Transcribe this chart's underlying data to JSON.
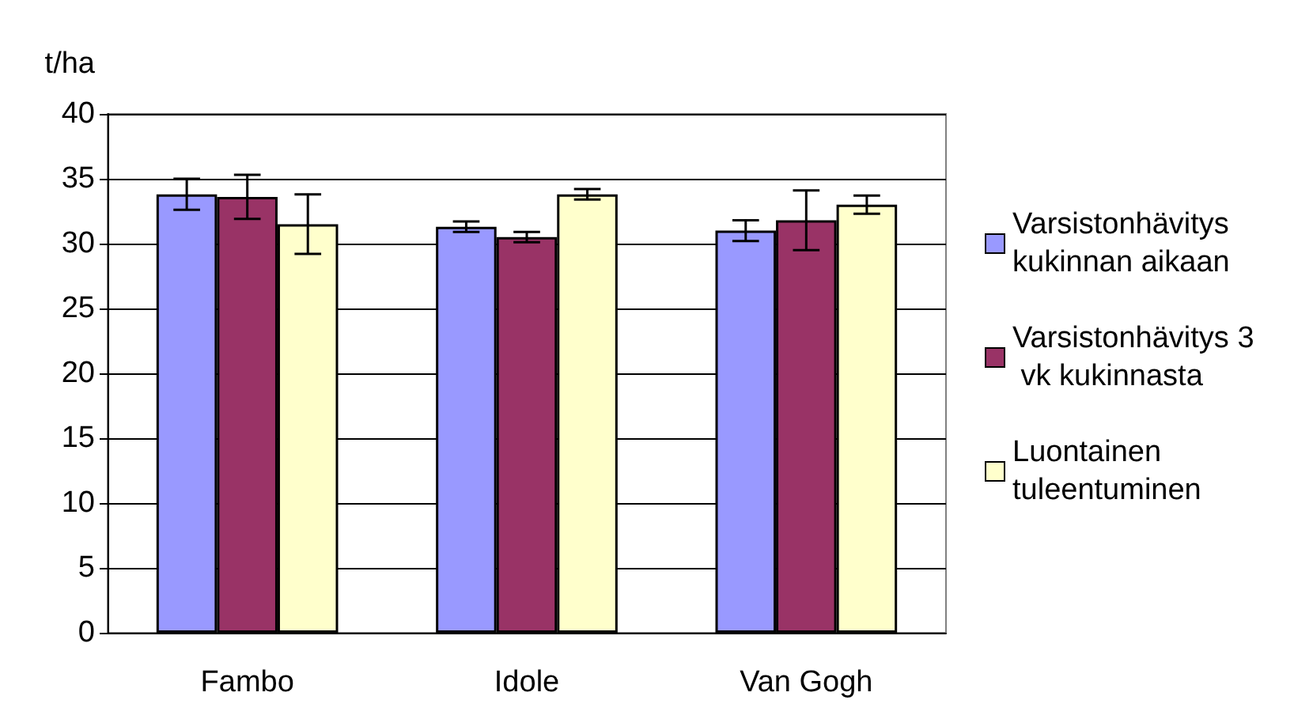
{
  "chart_data": {
    "type": "bar",
    "ylabel": "t/ha",
    "categories": [
      "Fambo",
      "Idole",
      "Van Gogh"
    ],
    "series": [
      {
        "name": "Varsistonhävitys kukinnan aikaan",
        "color": "#9999ff",
        "values": [
          33.8,
          31.3,
          31.0
        ],
        "errors": [
          1.2,
          0.4,
          0.8
        ]
      },
      {
        "name": "Varsistonhävitys 3 vk kukinnasta",
        "color": "#993366",
        "values": [
          33.6,
          30.5,
          31.8
        ],
        "errors": [
          1.7,
          0.4,
          2.3
        ]
      },
      {
        "name": "Luontainen tuleentuminen",
        "color": "#ffffcc",
        "values": [
          31.5,
          33.8,
          33.0
        ],
        "errors": [
          2.3,
          0.4,
          0.7
        ]
      }
    ],
    "ylim": [
      0,
      40
    ],
    "yticks": [
      0,
      5,
      10,
      15,
      20,
      25,
      30,
      35,
      40
    ],
    "grid": "y",
    "legend": "right"
  }
}
